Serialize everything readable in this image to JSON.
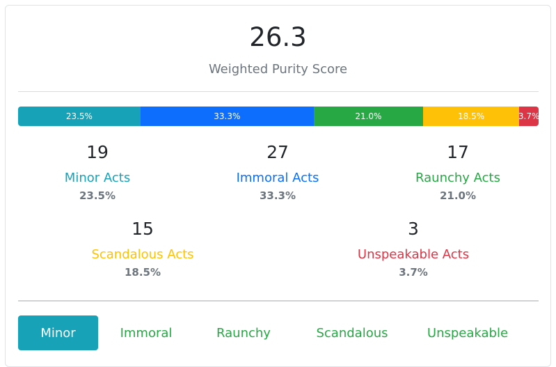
{
  "summary": {
    "score": "26.3",
    "label": "Weighted Purity Score"
  },
  "breakdown_bar": [
    {
      "label": "23.5%",
      "value": 23.5,
      "color": "#17a2b8"
    },
    {
      "label": "33.3%",
      "value": 33.3,
      "color": "#0d6efd"
    },
    {
      "label": "21.0%",
      "value": 21.0,
      "color": "#28a745"
    },
    {
      "label": "18.5%",
      "value": 18.5,
      "color": "#ffc107"
    },
    {
      "label": "3.7%",
      "value": 3.7,
      "color": "#dc3545"
    }
  ],
  "categories": [
    {
      "count": "19",
      "name": "Minor Acts",
      "percent": "23.5%",
      "color": "#17a2b8"
    },
    {
      "count": "27",
      "name": "Immoral Acts",
      "percent": "33.3%",
      "color": "#0d6efd"
    },
    {
      "count": "17",
      "name": "Raunchy Acts",
      "percent": "21.0%",
      "color": "#28a745"
    },
    {
      "count": "15",
      "name": "Scandalous Acts",
      "percent": "18.5%",
      "color": "#ffc107"
    },
    {
      "count": "3",
      "name": "Unspeakable Acts",
      "percent": "3.7%",
      "color": "#dc3545"
    }
  ],
  "tabs": [
    {
      "label": "Minor",
      "active": true
    },
    {
      "label": "Immoral",
      "active": false
    },
    {
      "label": "Raunchy",
      "active": false
    },
    {
      "label": "Scandalous",
      "active": false
    },
    {
      "label": "Unspeakable",
      "active": false
    }
  ]
}
